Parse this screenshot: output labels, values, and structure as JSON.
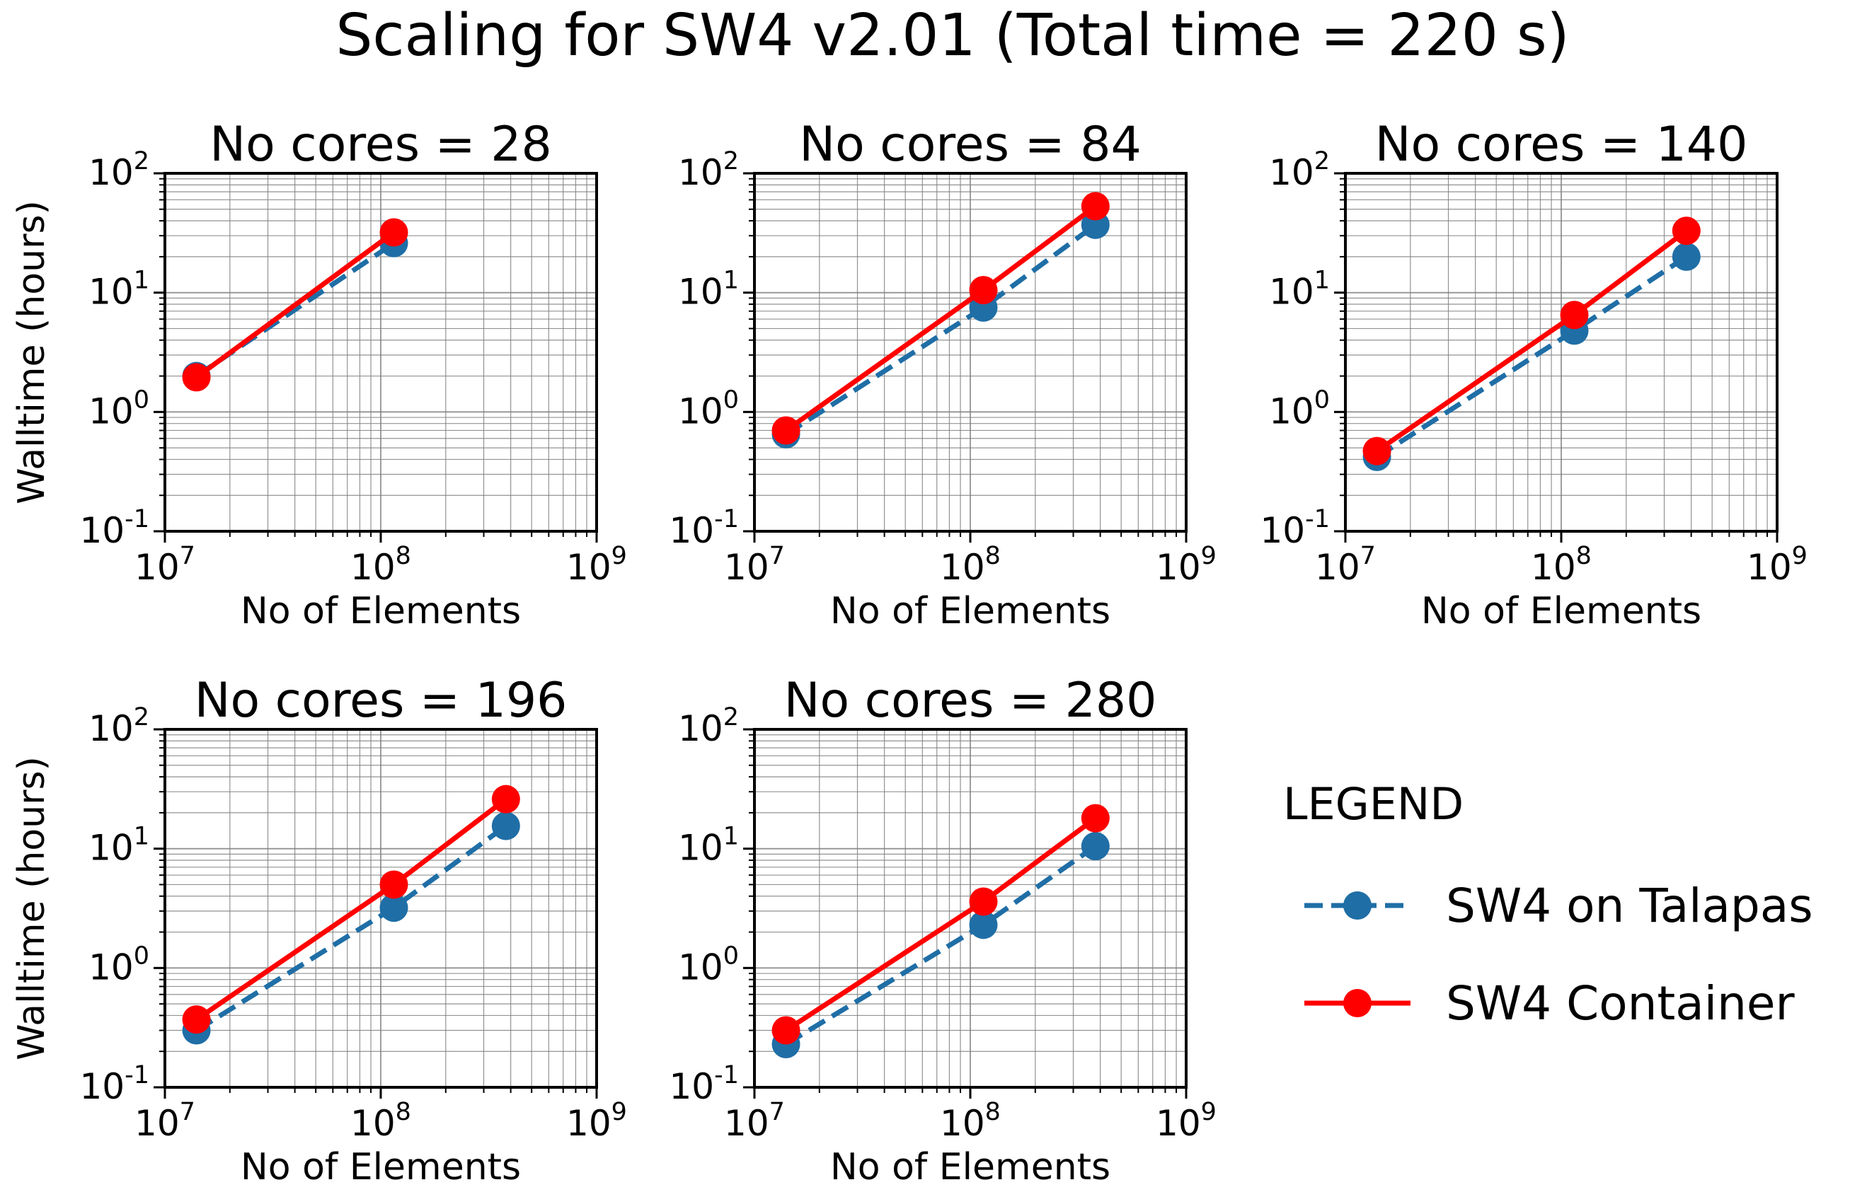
{
  "figure": {
    "suptitle": "Scaling for SW4 v2.01 (Total time = 220 s)"
  },
  "colors": {
    "talapas": "#1f6ea6",
    "container": "#ff0000",
    "grid": "#808080",
    "axes": "#000000"
  },
  "legend": {
    "title": "LEGEND",
    "entries": [
      {
        "label": "SW4 on Talapas",
        "series": "talapas"
      },
      {
        "label": "SW4 Container",
        "series": "container"
      }
    ]
  },
  "chart_data": [
    {
      "type": "line",
      "title": "No cores = 28",
      "xlabel": "No of Elements",
      "ylabel": "Walltime (hours)",
      "xscale": "log",
      "yscale": "log",
      "xlim": [
        10000000.0,
        1000000000.0
      ],
      "ylim": [
        0.1,
        100
      ],
      "grid": "both",
      "series": [
        {
          "name": "SW4 on Talapas",
          "key": "talapas",
          "x": [
            14000000.0,
            115000000.0
          ],
          "y": [
            2.0,
            26
          ]
        },
        {
          "name": "SW4 Container",
          "key": "container",
          "x": [
            14000000.0,
            115000000.0
          ],
          "y": [
            1.95,
            32
          ]
        }
      ]
    },
    {
      "type": "line",
      "title": "No cores = 84",
      "xlabel": "No of Elements",
      "ylabel": "",
      "xscale": "log",
      "yscale": "log",
      "xlim": [
        10000000.0,
        1000000000.0
      ],
      "ylim": [
        0.1,
        100
      ],
      "grid": "both",
      "series": [
        {
          "name": "SW4 on Talapas",
          "key": "talapas",
          "x": [
            14000000.0,
            115000000.0,
            380000000.0
          ],
          "y": [
            0.65,
            7.5,
            37
          ]
        },
        {
          "name": "SW4 Container",
          "key": "container",
          "x": [
            14000000.0,
            115000000.0,
            380000000.0
          ],
          "y": [
            0.7,
            10.5,
            53
          ]
        }
      ]
    },
    {
      "type": "line",
      "title": "No cores = 140",
      "xlabel": "No of Elements",
      "ylabel": "",
      "xscale": "log",
      "yscale": "log",
      "xlim": [
        10000000.0,
        1000000000.0
      ],
      "ylim": [
        0.1,
        100
      ],
      "grid": "both",
      "series": [
        {
          "name": "SW4 on Talapas",
          "key": "talapas",
          "x": [
            14000000.0,
            115000000.0,
            380000000.0
          ],
          "y": [
            0.42,
            4.8,
            20
          ]
        },
        {
          "name": "SW4 Container",
          "key": "container",
          "x": [
            14000000.0,
            115000000.0,
            380000000.0
          ],
          "y": [
            0.47,
            6.5,
            33
          ]
        }
      ]
    },
    {
      "type": "line",
      "title": "No cores = 196",
      "xlabel": "No of Elements",
      "ylabel": "Walltime (hours)",
      "xscale": "log",
      "yscale": "log",
      "xlim": [
        10000000.0,
        1000000000.0
      ],
      "ylim": [
        0.1,
        100
      ],
      "grid": "both",
      "series": [
        {
          "name": "SW4 on Talapas",
          "key": "talapas",
          "x": [
            14000000.0,
            115000000.0,
            380000000.0
          ],
          "y": [
            0.3,
            3.2,
            15.5
          ]
        },
        {
          "name": "SW4 Container",
          "key": "container",
          "x": [
            14000000.0,
            115000000.0,
            380000000.0
          ],
          "y": [
            0.37,
            5.0,
            26
          ]
        }
      ]
    },
    {
      "type": "line",
      "title": "No cores = 280",
      "xlabel": "No of Elements",
      "ylabel": "",
      "xscale": "log",
      "yscale": "log",
      "xlim": [
        10000000.0,
        1000000000.0
      ],
      "ylim": [
        0.1,
        100
      ],
      "grid": "both",
      "series": [
        {
          "name": "SW4 on Talapas",
          "key": "talapas",
          "x": [
            14000000.0,
            115000000.0,
            380000000.0
          ],
          "y": [
            0.23,
            2.3,
            10.5
          ]
        },
        {
          "name": "SW4 Container",
          "key": "container",
          "x": [
            14000000.0,
            115000000.0,
            380000000.0
          ],
          "y": [
            0.3,
            3.6,
            18
          ]
        }
      ]
    }
  ]
}
